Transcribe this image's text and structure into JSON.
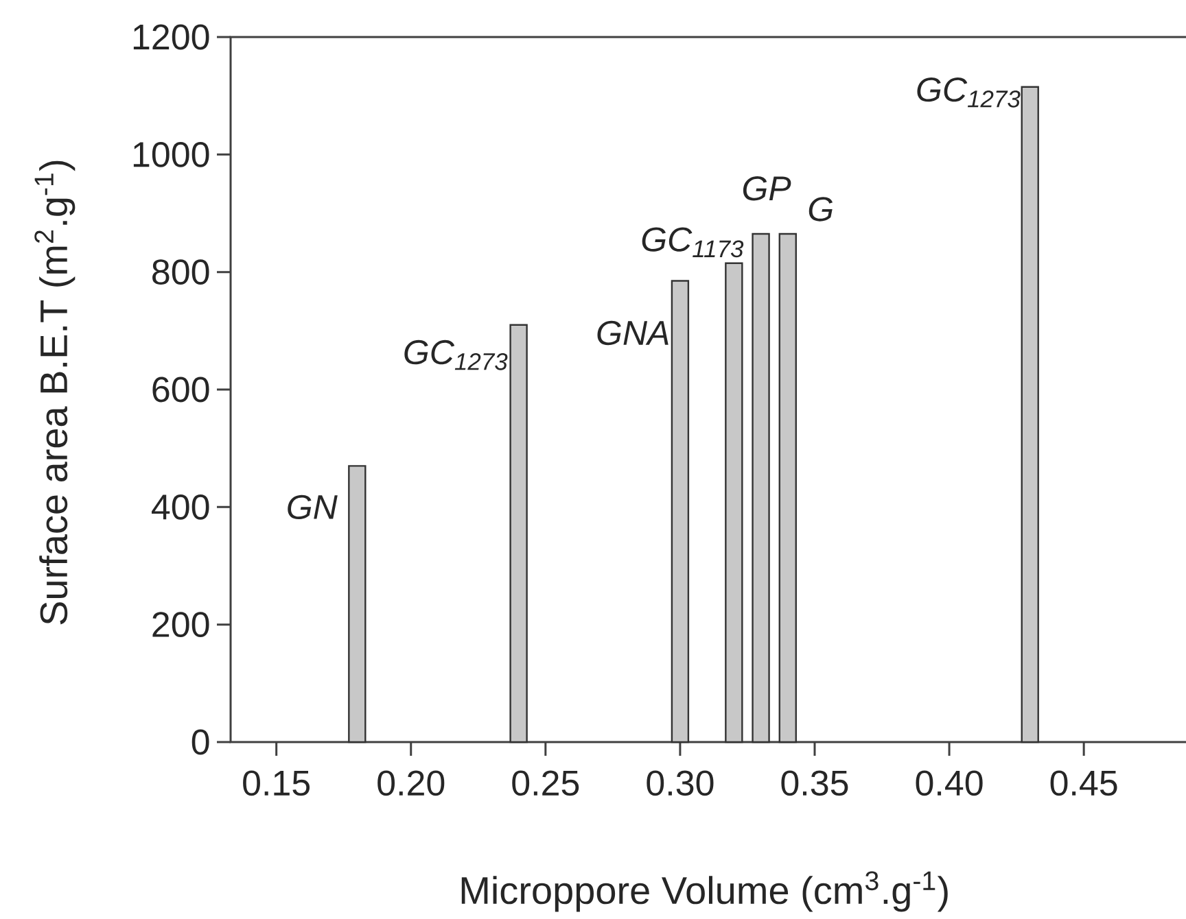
{
  "chart_data": {
    "type": "bar",
    "xlabel": "Microppore Volume (cm$^{3}$.g$^{-1}$)",
    "ylabel": "Surface area B.E.T (m$^{2}$.g$^{-1}$)",
    "x": [
      0.18,
      0.24,
      0.3,
      0.32,
      0.33,
      0.34,
      0.43
    ],
    "values": [
      470,
      710,
      785,
      815,
      865,
      865,
      1115
    ],
    "color": "#c8c8c8",
    "xlim": [
      0.133,
      0.49
    ],
    "ylim": [
      0,
      1200
    ],
    "xticks": [
      0.15,
      {
        "value": 0.2,
        "label": "0.20"
      },
      0.25,
      {
        "value": 0.3,
        "label": "0.30"
      },
      0.35,
      {
        "value": 0.4,
        "label": "0.40"
      },
      0.45
    ],
    "yticks": [
      0,
      200,
      400,
      600,
      800,
      1000,
      1200
    ],
    "grid": false,
    "annotations": [
      {
        "text": "GN",
        "x": 0.18,
        "y": 470
      },
      {
        "text": "GC$_{1273}$",
        "x": 0.24,
        "y": 710
      },
      {
        "text": "GNA",
        "x": 0.3,
        "y": 785
      },
      {
        "text": "GC$_{1173}$",
        "x": 0.32,
        "y": 815
      },
      {
        "text": "GP",
        "x": 0.33,
        "y": 865
      },
      {
        "text": "G",
        "x": 0.34,
        "y": 865
      },
      {
        "text": "GC$_{1273}$",
        "x": 0.43,
        "y": 1115
      }
    ]
  }
}
